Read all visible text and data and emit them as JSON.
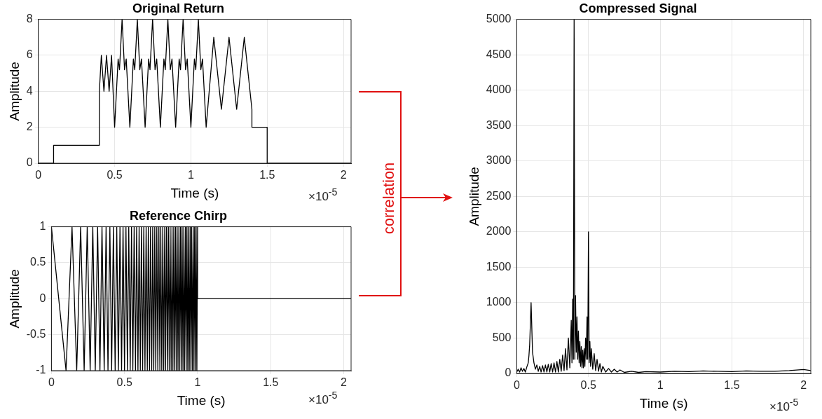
{
  "chart_data": [
    {
      "type": "line",
      "title": "Original Return",
      "xlabel": "Time (s)",
      "ylabel": "Amplitude",
      "xlim": [
        0,
        2.05
      ],
      "xticks": [
        0,
        0.5,
        1,
        1.5,
        2
      ],
      "ylim": [
        0,
        8
      ],
      "yticks": [
        0,
        2,
        4,
        6,
        8
      ],
      "grid": true,
      "annotations": [
        "×10$^{-5}$"
      ],
      "series": [
        {
          "color": "#000000",
          "x": [
            0,
            0.1,
            0.1,
            0.4,
            0.4,
            0.413,
            0.43,
            0.447,
            0.464,
            0.48,
            0.5,
            0.523,
            0.532,
            0.549,
            0.565,
            0.576,
            0.6,
            0.623,
            0.632,
            0.649,
            0.665,
            0.676,
            0.7,
            0.723,
            0.732,
            0.749,
            0.765,
            0.776,
            0.8,
            0.823,
            0.832,
            0.849,
            0.865,
            0.876,
            0.9,
            0.923,
            0.932,
            0.949,
            0.965,
            0.976,
            1.0,
            1.023,
            1.032,
            1.049,
            1.065,
            1.076,
            1.1,
            1.15,
            1.2,
            1.25,
            1.3,
            1.35,
            1.4,
            1.4,
            1.5,
            1.5,
            2.05
          ],
          "values": [
            0,
            0,
            1,
            1,
            4,
            6,
            4,
            6,
            4,
            6,
            2,
            5.8,
            5.2,
            8,
            5.2,
            5.8,
            2,
            5.8,
            5.2,
            8,
            5.2,
            5.8,
            2,
            5.8,
            5.2,
            8,
            5.2,
            5.8,
            2,
            5.8,
            5.2,
            8,
            5.2,
            5.8,
            2,
            5.8,
            5.2,
            8,
            5.2,
            5.8,
            2,
            5.8,
            5.2,
            8,
            5.2,
            5.8,
            2,
            7,
            3,
            7,
            3,
            7,
            3,
            2,
            2,
            0,
            0
          ]
        }
      ]
    },
    {
      "type": "line",
      "title": "Reference Chirp",
      "xlabel": "Time (s)",
      "ylabel": "Amplitude",
      "xlim": [
        0,
        2.05
      ],
      "xticks": [
        0,
        0.5,
        1,
        1.5,
        2
      ],
      "ylim": [
        -1,
        1
      ],
      "yticks": [
        -1,
        -0.5,
        0,
        0.5,
        1
      ],
      "grid": true,
      "annotations": [
        "×10$^{-5}$"
      ],
      "series": [
        {
          "color": "#000000",
          "x": [
            0,
            0.1,
            0.141,
            0.173,
            0.2,
            0.224,
            0.245,
            0.265,
            0.283,
            0.3,
            0.316,
            0.332,
            0.346,
            0.361,
            0.374,
            0.387,
            0.4,
            0.412,
            0.424,
            0.436,
            0.447,
            0.458,
            0.469,
            0.48,
            0.49,
            0.5,
            0.51,
            0.52,
            0.529,
            0.539,
            0.548,
            0.557,
            0.566,
            0.575,
            0.583,
            0.592,
            0.6,
            0.608,
            0.616,
            0.624,
            0.632,
            0.64,
            0.648,
            0.656,
            0.663,
            0.671,
            0.678,
            0.686,
            0.693,
            0.7,
            0.707,
            0.714,
            0.721,
            0.728,
            0.735,
            0.742,
            0.748,
            0.755,
            0.762,
            0.768,
            0.775,
            0.781,
            0.787,
            0.794,
            0.8,
            0.806,
            0.812,
            0.819,
            0.825,
            0.831,
            0.837,
            0.843,
            0.849,
            0.854,
            0.86,
            0.866,
            0.872,
            0.878,
            0.883,
            0.889,
            0.894,
            0.9,
            0.906,
            0.911,
            0.917,
            0.922,
            0.927,
            0.933,
            0.938,
            0.943,
            0.949,
            0.954,
            0.959,
            0.964,
            0.97,
            0.975,
            0.98,
            0.985,
            0.99,
            0.995,
            1.0,
            1.0,
            2.05
          ],
          "values": [
            1,
            -1,
            1,
            -1,
            1,
            -1,
            1,
            -1,
            1,
            -1,
            1,
            -1,
            1,
            -1,
            1,
            -1,
            1,
            -1,
            1,
            -1,
            1,
            -1,
            1,
            -1,
            1,
            -1,
            1,
            -1,
            1,
            -1,
            1,
            -1,
            1,
            -1,
            1,
            -1,
            1,
            -1,
            1,
            -1,
            1,
            -1,
            1,
            -1,
            1,
            -1,
            1,
            -1,
            1,
            -1,
            1,
            -1,
            1,
            -1,
            1,
            -1,
            1,
            -1,
            1,
            -1,
            1,
            -1,
            1,
            -1,
            1,
            -1,
            1,
            -1,
            1,
            -1,
            1,
            -1,
            1,
            -1,
            1,
            -1,
            1,
            -1,
            1,
            -1,
            1,
            -1,
            1,
            -1,
            1,
            -1,
            1,
            -1,
            1,
            -1,
            1,
            -1,
            1,
            -1,
            1,
            -1,
            1,
            -1,
            1,
            -1,
            1,
            0,
            0
          ]
        }
      ]
    },
    {
      "type": "line",
      "title": "Compressed Signal",
      "xlabel": "Time (s)",
      "ylabel": "Amplitude",
      "xlim": [
        0,
        2.05
      ],
      "xticks": [
        0,
        0.5,
        1,
        1.5,
        2
      ],
      "ylim": [
        0,
        5000
      ],
      "yticks": [
        0,
        500,
        1000,
        1500,
        2000,
        2500,
        3000,
        3500,
        4000,
        4500,
        5000
      ],
      "grid": true,
      "annotations": [
        "×10$^{-5}$",
        "correlation"
      ],
      "series": [
        {
          "color": "#000000",
          "x": [
            0,
            0.01,
            0.02,
            0.03,
            0.04,
            0.05,
            0.06,
            0.07,
            0.08,
            0.085,
            0.09,
            0.1,
            0.11,
            0.12,
            0.13,
            0.14,
            0.15,
            0.16,
            0.17,
            0.18,
            0.19,
            0.2,
            0.21,
            0.22,
            0.23,
            0.24,
            0.25,
            0.26,
            0.27,
            0.28,
            0.29,
            0.3,
            0.31,
            0.32,
            0.33,
            0.34,
            0.35,
            0.36,
            0.37,
            0.38,
            0.385,
            0.39,
            0.395,
            0.4,
            0.405,
            0.41,
            0.415,
            0.42,
            0.425,
            0.43,
            0.435,
            0.44,
            0.445,
            0.45,
            0.455,
            0.46,
            0.465,
            0.47,
            0.475,
            0.48,
            0.485,
            0.49,
            0.495,
            0.5,
            0.505,
            0.51,
            0.515,
            0.52,
            0.53,
            0.54,
            0.55,
            0.56,
            0.57,
            0.58,
            0.59,
            0.6,
            0.62,
            0.64,
            0.66,
            0.68,
            0.7,
            0.72,
            0.75,
            0.8,
            0.85,
            0.9,
            1.0,
            1.1,
            1.2,
            1.3,
            1.4,
            1.5,
            1.6,
            1.7,
            1.8,
            1.9,
            2.0,
            2.05
          ],
          "values": [
            20,
            60,
            20,
            80,
            30,
            70,
            20,
            90,
            150,
            250,
            400,
            1000,
            300,
            150,
            60,
            120,
            30,
            100,
            20,
            110,
            20,
            120,
            20,
            130,
            20,
            140,
            20,
            150,
            20,
            170,
            20,
            200,
            30,
            260,
            40,
            350,
            50,
            500,
            80,
            750,
            150,
            1050,
            200,
            5000,
            200,
            1100,
            300,
            800,
            200,
            600,
            150,
            450,
            100,
            380,
            80,
            330,
            80,
            350,
            100,
            500,
            200,
            800,
            200,
            2000,
            150,
            450,
            100,
            350,
            60,
            280,
            40,
            200,
            30,
            140,
            20,
            100,
            20,
            70,
            20,
            60,
            20,
            50,
            15,
            30,
            15,
            25,
            20,
            30,
            25,
            35,
            30,
            25,
            35,
            30,
            30,
            40,
            55,
            40
          ]
        }
      ]
    }
  ]
}
